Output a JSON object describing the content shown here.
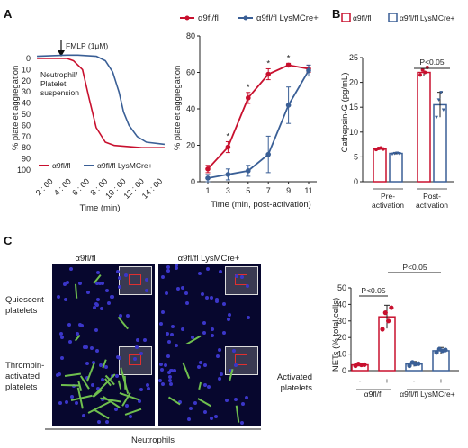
{
  "panels": {
    "A": "A",
    "B": "B",
    "C": "C"
  },
  "legend": {
    "wt": "α9fl/fl",
    "ko": "α9fl/fl LysMCre+"
  },
  "colors": {
    "wt": "#c8102e",
    "ko": "#3a5f96"
  },
  "chart_data": [
    {
      "type": "line",
      "id": "A-left",
      "ylabel": "% platelet aggregation",
      "xlabel": "Time (min)",
      "xticks": [
        "2 : 00",
        "4 : 00",
        "6 : 00",
        "8 : 00",
        "10 : 00",
        "12 : 00",
        "14 : 00"
      ],
      "yticks": [
        "0",
        "10",
        "20",
        "30",
        "40",
        "50",
        "60",
        "70",
        "80",
        "90",
        "100"
      ],
      "annotations": {
        "fmlp": "FMLP (1μM)",
        "suspension": [
          "Neutrophil/",
          "Platelet",
          "suspension"
        ]
      },
      "series": [
        {
          "name": "α9fl/fl",
          "x": [
            0.5,
            3.8,
            4.5,
            5.5,
            6.2,
            7.0,
            8.0,
            9.0,
            10.5,
            12.0,
            14.5
          ],
          "y": [
            0,
            0,
            2,
            10,
            35,
            62,
            75,
            78,
            79,
            80,
            80
          ]
        },
        {
          "name": "α9fl/fl LysMCre+",
          "x": [
            0.5,
            3.8,
            5.0,
            7.0,
            8.0,
            8.8,
            9.5,
            10.0,
            10.6,
            11.5,
            12.5,
            14.5
          ],
          "y": [
            -2,
            -3,
            -3,
            -2,
            2,
            12,
            30,
            48,
            60,
            70,
            75,
            77
          ]
        }
      ]
    },
    {
      "type": "line",
      "id": "A-right",
      "ylabel": "% platelet aggregation",
      "xlabel": "Time (min, post-activation)",
      "x": [
        1,
        3,
        5,
        7,
        9,
        11
      ],
      "ylim": [
        0,
        80
      ],
      "yticks": [
        "0",
        "20",
        "40",
        "60",
        "80"
      ],
      "series": [
        {
          "name": "α9fl/fl",
          "values": [
            7,
            19,
            46,
            59,
            64,
            62
          ],
          "err": [
            2,
            3,
            3,
            3,
            1,
            2
          ]
        },
        {
          "name": "α9fl/fl LysMCre+",
          "values": [
            2,
            4,
            6,
            15,
            42,
            61
          ],
          "err": [
            2,
            3,
            3,
            10,
            10,
            3
          ]
        }
      ],
      "significance": [
        "*",
        "*",
        "*",
        "*"
      ]
    },
    {
      "type": "bar",
      "id": "B",
      "ylabel": "Cathepsin-G (pg/mL)",
      "categories": [
        "Pre-activation",
        "Post-activation"
      ],
      "category_lines": [
        [
          "Pre-",
          "activation"
        ],
        [
          "Post-",
          "activation"
        ]
      ],
      "ylim": [
        0,
        25
      ],
      "yticks": [
        "0",
        "5",
        "10",
        "15",
        "20",
        "25"
      ],
      "series": [
        {
          "name": "α9fl/fl",
          "values": [
            6.6,
            22.0
          ],
          "err": [
            0.2,
            0.8
          ],
          "points": [
            [
              6.5,
              6.7,
              6.8,
              6.6
            ],
            [
              21.5,
              22.5,
              22.0,
              23.0
            ]
          ]
        },
        {
          "name": "α9fl/fl LysMCre+",
          "values": [
            5.7,
            15.5
          ],
          "err": [
            0.2,
            2.5
          ],
          "points": [
            [
              5.6,
              5.7,
              5.8,
              5.7
            ],
            [
              13.0,
              16.5,
              18.0,
              14.5
            ]
          ]
        }
      ],
      "significance": "P<0.05"
    },
    {
      "type": "bar",
      "id": "C-right",
      "ylabel": "NETs (% total cells)",
      "categories": [
        "-",
        "+",
        "-",
        "+"
      ],
      "groups": [
        "α9fl/fl",
        "α9fl/fl LysMCre+"
      ],
      "row_label": [
        "Activated",
        "platelets"
      ],
      "ylim": [
        0,
        50
      ],
      "yticks": [
        "0",
        "10",
        "20",
        "30",
        "40",
        "50"
      ],
      "values": [
        3.5,
        32.5,
        4.0,
        12.0
      ],
      "err": [
        1,
        7,
        1.5,
        2
      ],
      "points": [
        [
          3.0,
          4.0,
          3.5,
          3.6
        ],
        [
          25,
          35,
          30,
          38
        ],
        [
          3.0,
          5.0,
          4.0,
          4.2
        ],
        [
          11,
          13,
          12,
          12.5
        ]
      ],
      "significance": [
        "P<0.05",
        "P<0.05"
      ]
    }
  ],
  "micrographs": {
    "col1": "α9fl/fl",
    "col2": "α9fl/fl LysMCre+",
    "row1": [
      "Quiescent",
      "platelets"
    ],
    "row2": [
      "Thrombin-",
      "activated",
      "platelets"
    ],
    "footer": "Neutrophils"
  }
}
